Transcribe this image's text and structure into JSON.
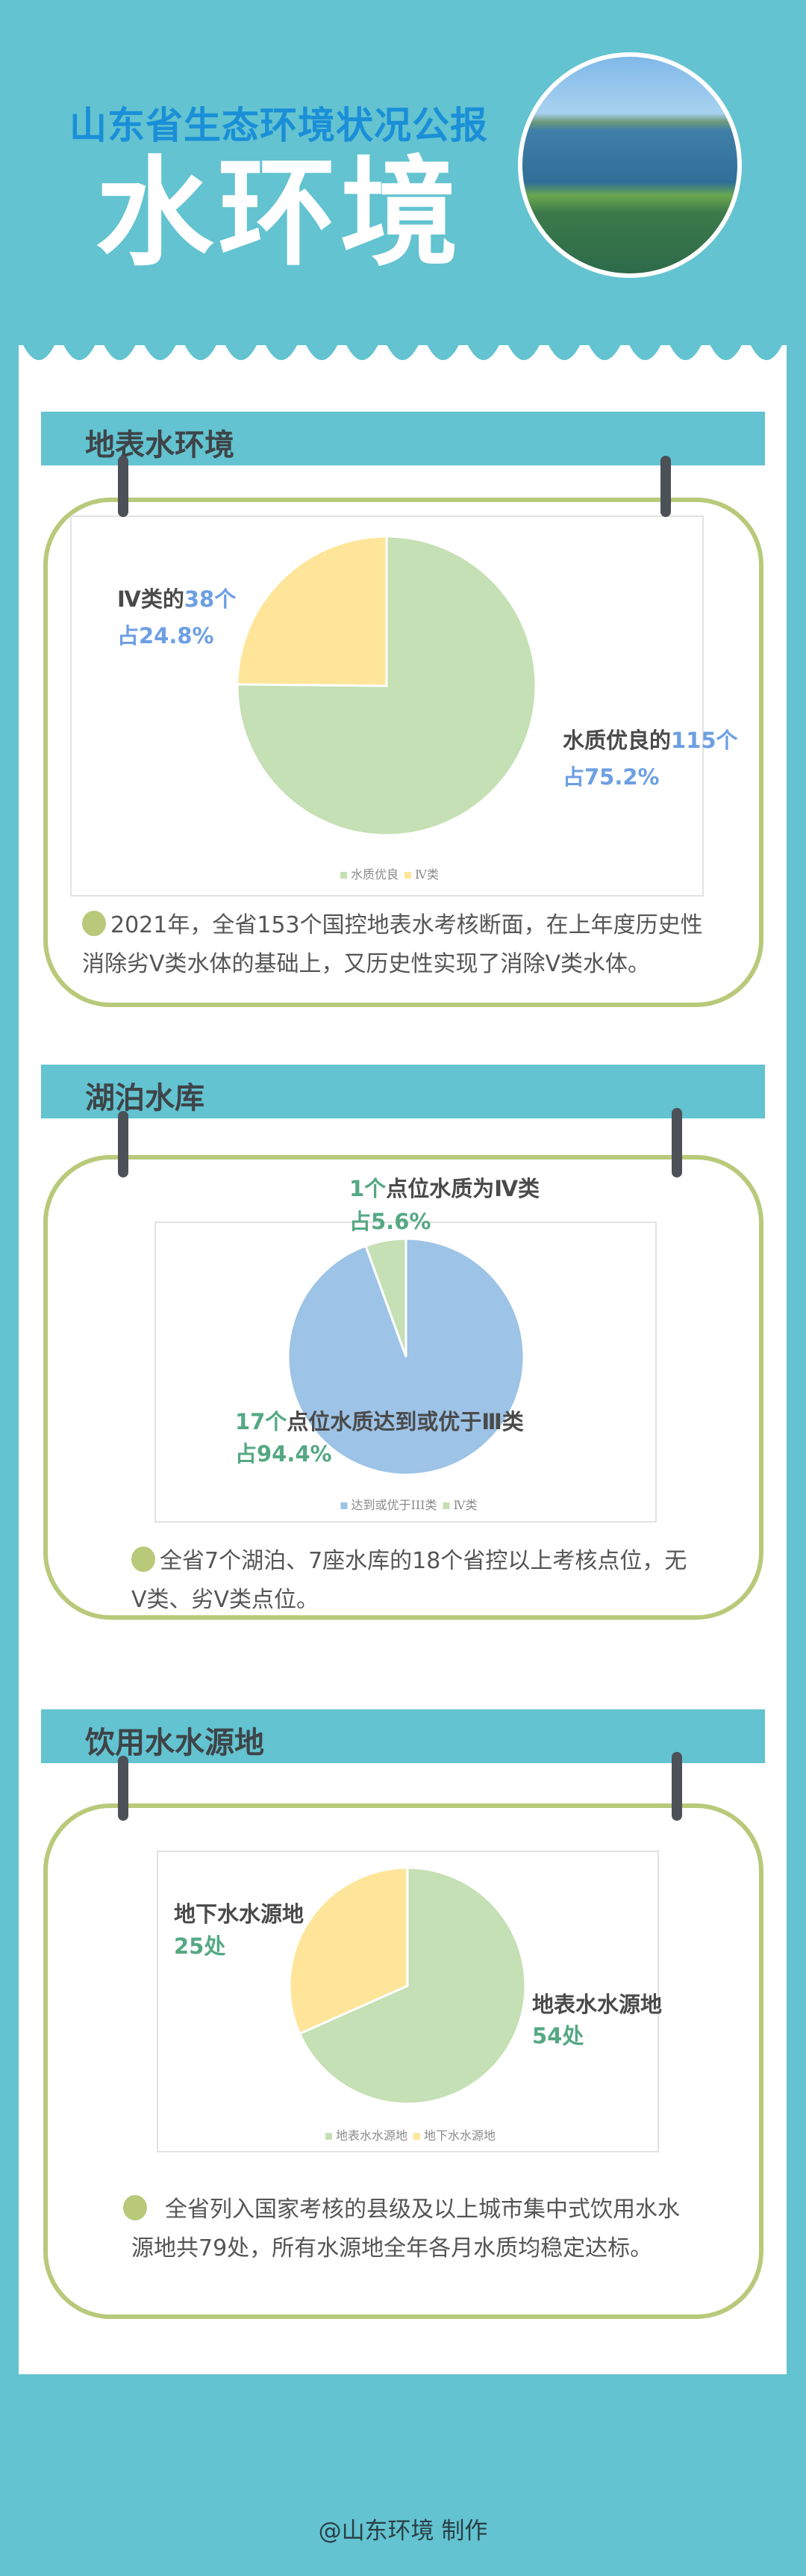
{
  "header": {
    "subtitle": "山东省生态环境状况公报",
    "title": "水环境"
  },
  "colors": {
    "background": "#63c3d0",
    "subtitle": "#1a8fd8",
    "card_border": "#b8c97a",
    "pin": "#4b5157"
  },
  "sections": [
    {
      "heading": "地表水环境",
      "labels": [
        {
          "text_a": "Ⅳ类的",
          "text_b": "38个",
          "pct": "占24.8%"
        },
        {
          "text_a": "水质优良的",
          "text_b": "115个",
          "pct": "占75.2%"
        }
      ],
      "paragraph_line1": "2021年，全省153个国控地表水考核断面，在上年度历史性",
      "paragraph_line2": "消除劣V类水体的基础上，又历史性实现了消除V类水体。"
    },
    {
      "heading": "湖泊水库",
      "labels": [
        {
          "text_a": "1个",
          "text_b": "点位水质为Ⅳ类",
          "pct": "占5.6%"
        },
        {
          "text_a": "17个",
          "text_b": "点位水质达到或优于Ⅲ类",
          "pct": "占94.4%"
        }
      ],
      "paragraph_line1": "全省7个湖泊、7座水库的18个省控以上考核点位，无",
      "paragraph_line2": "Ⅴ类、劣Ⅴ类点位。"
    },
    {
      "heading": "饮用水水源地",
      "labels": [
        {
          "text_a": "地下水水源地",
          "text_b": "25处"
        },
        {
          "text_a": "地表水水源地",
          "text_b": "54处"
        }
      ],
      "paragraph_line1": "全省列入国家考核的县级及以上城市集中式饮用水水",
      "paragraph_line2": "源地共79处，所有水源地全年各月水质均稳定达标。"
    }
  ],
  "chart_data": [
    {
      "type": "pie",
      "categories": [
        "水质优良",
        "Ⅳ类"
      ],
      "values": [
        115,
        38
      ],
      "percent": [
        75.2,
        24.8
      ],
      "colors": [
        "#c5e0b4",
        "#fee599"
      ],
      "legend": "bottom"
    },
    {
      "type": "pie",
      "categories": [
        "达到或优于III类",
        "Ⅳ类"
      ],
      "values": [
        17,
        1
      ],
      "percent": [
        94.4,
        5.6
      ],
      "colors": [
        "#9dc3e6",
        "#c5e0b4"
      ],
      "legend": "bottom"
    },
    {
      "type": "pie",
      "categories": [
        "地表水水源地",
        "地下水水源地"
      ],
      "values": [
        54,
        25
      ],
      "colors": [
        "#c5e0b4",
        "#fee599"
      ],
      "legend": "bottom"
    }
  ],
  "footer": "@山东环境 制作"
}
